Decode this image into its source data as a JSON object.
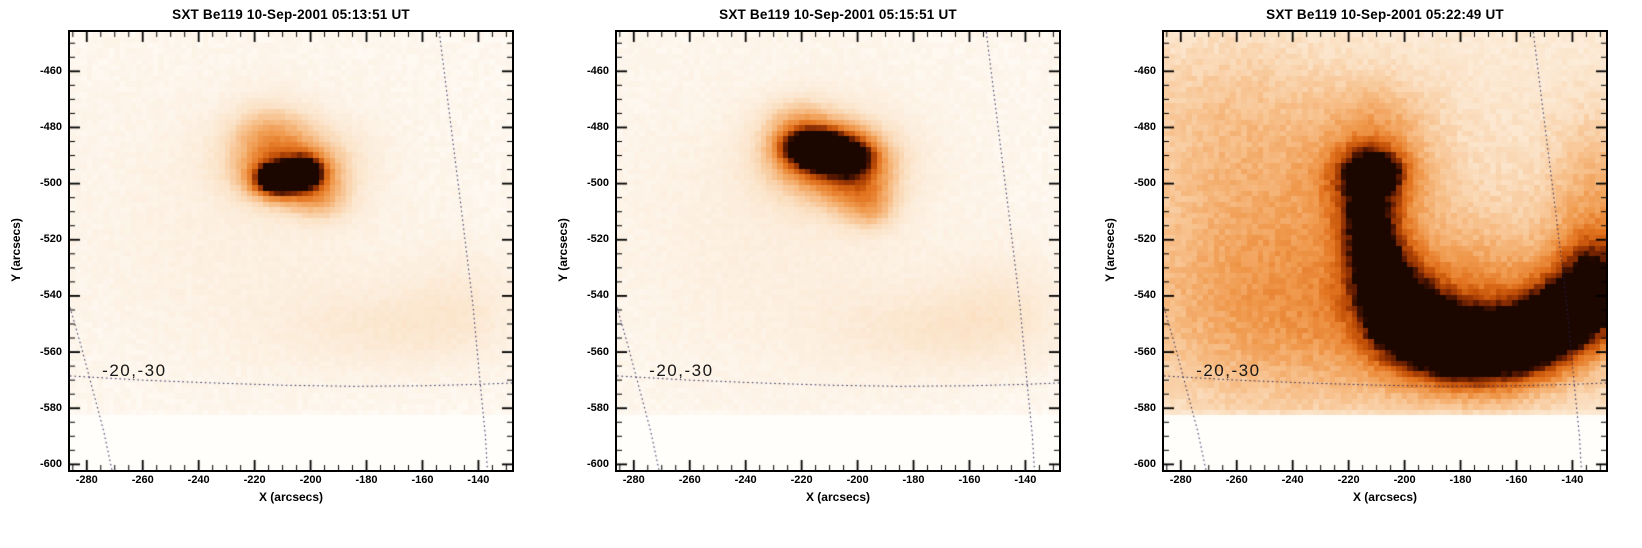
{
  "chart_data": {
    "type": "heatmap",
    "note": "Yohkoh SXT soft X-ray images of a solar flare, inverted orange colormap; brightness approximated as gaussian sources (x,y centers in arcsec, sx/sy sigmas, a amplitude 0-1+). Dotted overlay = heliographic grid.",
    "shared_axes": {
      "xlabel": "X (arcsecs)",
      "ylabel": "Y (arcsecs)",
      "xlim": [
        -286,
        -128
      ],
      "ylim": [
        -602,
        -446
      ],
      "xticks": [
        -280,
        -260,
        -240,
        -220,
        -200,
        -180,
        -160,
        -140
      ],
      "yticks": [
        -600,
        -580,
        -560,
        -540,
        -520,
        -500,
        -480,
        -460
      ],
      "minor_tick_step": 5
    },
    "data_edge_y": -581,
    "colormap_stops": [
      [
        0.0,
        "#fffefb"
      ],
      [
        0.06,
        "#fdf3e7"
      ],
      [
        0.18,
        "#fbe3c8"
      ],
      [
        0.32,
        "#f7c08b"
      ],
      [
        0.46,
        "#f09a4e"
      ],
      [
        0.6,
        "#e2731f"
      ],
      [
        0.72,
        "#c14f07"
      ],
      [
        0.82,
        "#933203"
      ],
      [
        0.91,
        "#5d1a01"
      ],
      [
        1.0,
        "#1c0600"
      ]
    ],
    "grid_overlay": {
      "color": "#23235a",
      "lines": [
        {
          "name": "latitude-line",
          "pts": [
            [
              -286,
              -568.5
            ],
            [
              -260,
              -570
            ],
            [
              -235,
              -571
            ],
            [
              -210,
              -571.8
            ],
            [
              -185,
              -572.2
            ],
            [
              -160,
              -572
            ],
            [
              -140,
              -571.5
            ],
            [
              -128,
              -571
            ]
          ]
        },
        {
          "name": "left-meridian",
          "pts": [
            [
              -286,
              -544
            ],
            [
              -282,
              -558
            ],
            [
              -278,
              -573
            ],
            [
              -274,
              -588
            ],
            [
              -271,
              -602
            ]
          ]
        },
        {
          "name": "right-meridian",
          "pts": [
            [
              -154,
              -446
            ],
            [
              -150,
              -478
            ],
            [
              -146,
              -510
            ],
            [
              -142,
              -543
            ],
            [
              -139,
              -575
            ],
            [
              -137.5,
              -590
            ],
            [
              -136.8,
              -602
            ]
          ]
        }
      ]
    },
    "panels": [
      {
        "title": "SXT Be119 10-Sep-2001 05:13:51 UT",
        "annotation": {
          "text": "-20,-30",
          "x": -274.5,
          "y": -563
        },
        "seed": 3,
        "base": 0.02,
        "noise": 0.035,
        "sources": [
          {
            "x": -212,
            "y": -498.5,
            "sx": 4.5,
            "sy": 3,
            "a": 1.35
          },
          {
            "x": -202,
            "y": -496,
            "sx": 3.5,
            "sy": 3,
            "a": 1.45
          },
          {
            "x": -207,
            "y": -497.5,
            "sx": 9,
            "sy": 5.5,
            "a": 0.7
          },
          {
            "x": -208,
            "y": -492,
            "sx": 14,
            "sy": 9,
            "a": 0.32
          },
          {
            "x": -215,
            "y": -482,
            "sx": 9,
            "sy": 7,
            "a": 0.2
          },
          {
            "x": -196,
            "y": -506,
            "sx": 7,
            "sy": 5,
            "a": 0.18
          },
          {
            "x": -172,
            "y": -551,
            "sx": 26,
            "sy": 10,
            "a": 0.07
          },
          {
            "x": -146,
            "y": -541,
            "sx": 14,
            "sy": 13,
            "a": 0.05
          },
          {
            "x": -222,
            "y": -516,
            "sx": 42,
            "sy": 36,
            "a": 0.035
          }
        ]
      },
      {
        "title": "SXT Be119 10-Sep-2001 05:15:51 UT",
        "annotation": {
          "text": "-20,-30",
          "x": -274.5,
          "y": -563
        },
        "seed": 7,
        "base": 0.022,
        "noise": 0.035,
        "sources": [
          {
            "x": -216,
            "y": -487,
            "sx": 6,
            "sy": 3.4,
            "a": 1.35
          },
          {
            "x": -206,
            "y": -490.5,
            "sx": 6,
            "sy": 3.4,
            "a": 1.3
          },
          {
            "x": -211,
            "y": -489,
            "sx": 10,
            "sy": 6,
            "a": 0.75
          },
          {
            "x": -210,
            "y": -492,
            "sx": 15,
            "sy": 10,
            "a": 0.38
          },
          {
            "x": -200,
            "y": -500,
            "sx": 8,
            "sy": 7,
            "a": 0.32
          },
          {
            "x": -195,
            "y": -509,
            "sx": 6,
            "sy": 5,
            "a": 0.18
          },
          {
            "x": -221,
            "y": -479,
            "sx": 8,
            "sy": 6,
            "a": 0.22
          },
          {
            "x": -170,
            "y": -552,
            "sx": 26,
            "sy": 10,
            "a": 0.08
          },
          {
            "x": -148,
            "y": -542,
            "sx": 14,
            "sy": 12,
            "a": 0.055
          },
          {
            "x": -224,
            "y": -518,
            "sx": 42,
            "sy": 36,
            "a": 0.04
          }
        ]
      },
      {
        "title": "SXT Be119 10-Sep-2001 05:22:49 UT",
        "annotation": {
          "text": "-20,-30",
          "x": -274.5,
          "y": -563
        },
        "seed": 13,
        "base": 0.05,
        "noise": 0.07,
        "sources": [
          {
            "x": -209.5,
            "y": -497,
            "sx": 3.5,
            "sy": 3,
            "a": 1.05
          },
          {
            "x": -212,
            "y": -496,
            "sx": 6.5,
            "sy": 5.5,
            "a": 0.85
          },
          {
            "x": -212,
            "y": -499,
            "sx": 12,
            "sy": 10,
            "a": 0.45
          },
          {
            "x": -210,
            "y": -478,
            "sx": 13,
            "sy": 10,
            "a": 0.15
          },
          {
            "x": -213.5,
            "y": -514,
            "sx": 6.5,
            "sy": 9,
            "a": 0.7
          },
          {
            "x": -209,
            "y": -531,
            "sx": 7.5,
            "sy": 10,
            "a": 0.88
          },
          {
            "x": -201,
            "y": -546,
            "sx": 9,
            "sy": 9,
            "a": 1.0
          },
          {
            "x": -187,
            "y": -556,
            "sx": 11,
            "sy": 8,
            "a": 1.18
          },
          {
            "x": -169,
            "y": -559,
            "sx": 12,
            "sy": 8,
            "a": 1.12
          },
          {
            "x": -152,
            "y": -553,
            "sx": 10,
            "sy": 8,
            "a": 1.02
          },
          {
            "x": -140,
            "y": -545,
            "sx": 9,
            "sy": 8,
            "a": 0.92
          },
          {
            "x": -132,
            "y": -535,
            "sx": 8,
            "sy": 10,
            "a": 0.78
          },
          {
            "x": -178,
            "y": -548,
            "sx": 34,
            "sy": 19,
            "a": 0.38
          },
          {
            "x": -131,
            "y": -515,
            "sx": 12,
            "sy": 26,
            "a": 0.25
          },
          {
            "x": -256,
            "y": -547,
            "sx": 38,
            "sy": 26,
            "a": 0.2
          },
          {
            "x": -242,
            "y": -507,
            "sx": 34,
            "sy": 30,
            "a": 0.13
          },
          {
            "x": -268,
            "y": -474,
            "sx": 28,
            "sy": 24,
            "a": 0.1
          },
          {
            "x": -198,
            "y": -520,
            "sx": 70,
            "sy": 55,
            "a": 0.1
          }
        ]
      }
    ]
  }
}
